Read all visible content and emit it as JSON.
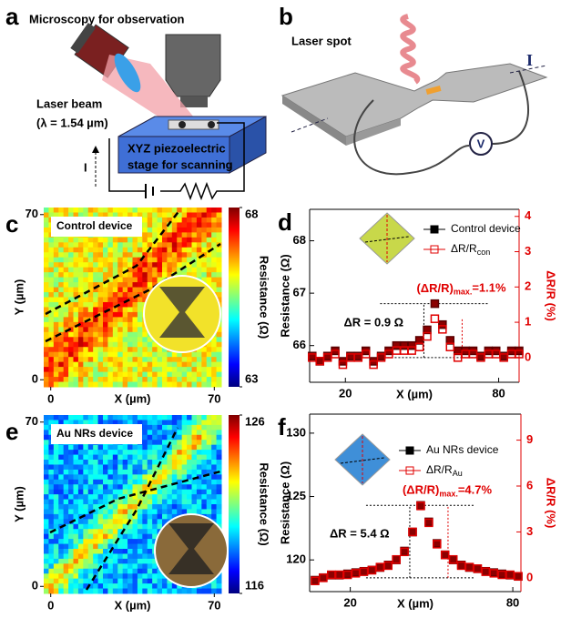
{
  "panel_a": {
    "letter": "a",
    "title": "Microscopy for observation",
    "beam": "Laser beam",
    "wavelength": "(λ = 1.54 µm)",
    "stage_line1": "XYZ piezoelectric",
    "stage_line2": "stage for scanning",
    "current": "I"
  },
  "panel_b": {
    "letter": "b",
    "spot": "Laser spot",
    "current": "I",
    "voltage": "V"
  },
  "panel_c": {
    "letter": "c",
    "type": "heatmap",
    "label": "Control device",
    "xlabel": "X (µm)",
    "ylabel": "Y (µm)",
    "xlim": [
      -3,
      73
    ],
    "ylim": [
      -3,
      73
    ],
    "xticks": [
      0,
      70
    ],
    "yticks": [
      0,
      70
    ],
    "colorbar": {
      "label": "Resistance (Ω)",
      "lim": [
        63,
        68
      ],
      "ticks": [
        63,
        68
      ]
    }
  },
  "panel_d": {
    "letter": "d",
    "type": "scatter",
    "xlabel": "X (µm)",
    "ylabel": "Resistance (Ω)",
    "y2label": "ΔR/R (%)",
    "xlim": [
      6,
      88
    ],
    "xticks": [
      20,
      80
    ],
    "ylim": [
      65.3,
      68.6
    ],
    "yticks": [
      66,
      67,
      68
    ],
    "y2lim": [
      -0.7,
      4.2
    ],
    "y2ticks": [
      0,
      1,
      2,
      3,
      4
    ],
    "x": [
      7,
      10,
      13,
      16,
      19,
      22,
      25,
      28,
      31,
      34,
      37,
      40,
      43,
      46,
      49,
      52,
      55,
      58,
      61,
      64,
      67,
      70,
      73,
      76,
      79,
      82,
      85,
      88
    ],
    "series": [
      {
        "name": "Control device",
        "color": "#000000",
        "values": [
          65.8,
          65.7,
          65.8,
          65.9,
          65.7,
          65.8,
          65.8,
          65.9,
          65.7,
          65.8,
          65.9,
          66.0,
          66.0,
          66.0,
          66.1,
          66.3,
          66.8,
          66.4,
          66.1,
          65.9,
          65.9,
          65.9,
          65.8,
          65.9,
          65.9,
          65.8,
          65.9,
          65.9
        ]
      },
      {
        "name": "ΔR/R",
        "name_subscript": "con",
        "color": "#e00000",
        "axis": "y2",
        "values": [
          0,
          -0.1,
          0,
          0.1,
          -0.2,
          0,
          0,
          0.1,
          -0.2,
          0,
          0.1,
          0.2,
          0.2,
          0.2,
          0.3,
          0.6,
          1.1,
          0.8,
          0.3,
          0,
          0.1,
          0.1,
          0,
          0.1,
          0.1,
          0,
          0.1,
          0.1
        ]
      }
    ],
    "annotations": {
      "delta_r": "ΔR = 0.9 Ω",
      "ratio": "(ΔR/R)",
      "ratio_sub": "max.",
      "ratio_value": "=1.1%"
    }
  },
  "panel_e": {
    "letter": "e",
    "type": "heatmap",
    "label": "Au NRs device",
    "xlabel": "X (µm)",
    "ylabel": "Y (µm)",
    "xlim": [
      -3,
      73
    ],
    "ylim": [
      -3,
      73
    ],
    "xticks": [
      0,
      70
    ],
    "yticks": [
      0,
      70
    ],
    "colorbar": {
      "label": "Resistance (Ω)",
      "lim": [
        116,
        126
      ],
      "ticks": [
        116,
        126
      ]
    }
  },
  "panel_f": {
    "letter": "f",
    "type": "scatter",
    "xlabel": "X (µm)",
    "ylabel": "Resistance (Ω)",
    "y2label": "ΔR/R (%)",
    "xlim": [
      5,
      83
    ],
    "xticks": [
      20,
      80
    ],
    "ylim": [
      117.5,
      131.5
    ],
    "yticks": [
      120,
      125,
      130
    ],
    "y2lim": [
      -0.9,
      10.7
    ],
    "y2ticks": [
      0,
      3,
      6,
      9
    ],
    "x": [
      7,
      10,
      13,
      16,
      19,
      22,
      25,
      28,
      31,
      34,
      37,
      40,
      43,
      46,
      49,
      52,
      55,
      58,
      61,
      64,
      67,
      70,
      73,
      76,
      79,
      82
    ],
    "series": [
      {
        "name": "Au NRs device",
        "color": "#000000",
        "values": [
          118.4,
          118.6,
          118.8,
          118.8,
          118.9,
          119.0,
          119.1,
          119.2,
          119.4,
          119.6,
          120.0,
          120.7,
          122.2,
          124.3,
          123.0,
          121.3,
          120.4,
          120.0,
          119.6,
          119.4,
          119.3,
          119.1,
          119.0,
          118.9,
          118.8,
          118.7
        ]
      },
      {
        "name": "ΔR/R",
        "name_subscript": "Au",
        "color": "#e00000",
        "axis": "y2",
        "values": [
          -0.2,
          0,
          0.2,
          0.2,
          0.2,
          0.3,
          0.4,
          0.5,
          0.7,
          0.8,
          1.2,
          1.7,
          3.0,
          4.7,
          3.6,
          2.2,
          1.5,
          1.2,
          0.8,
          0.7,
          0.6,
          0.4,
          0.3,
          0.2,
          0.2,
          0.1
        ]
      }
    ],
    "annotations": {
      "delta_r": "ΔR = 5.4 Ω",
      "ratio": "(ΔR/R)",
      "ratio_sub": "max.",
      "ratio_value": "=4.7%"
    }
  }
}
